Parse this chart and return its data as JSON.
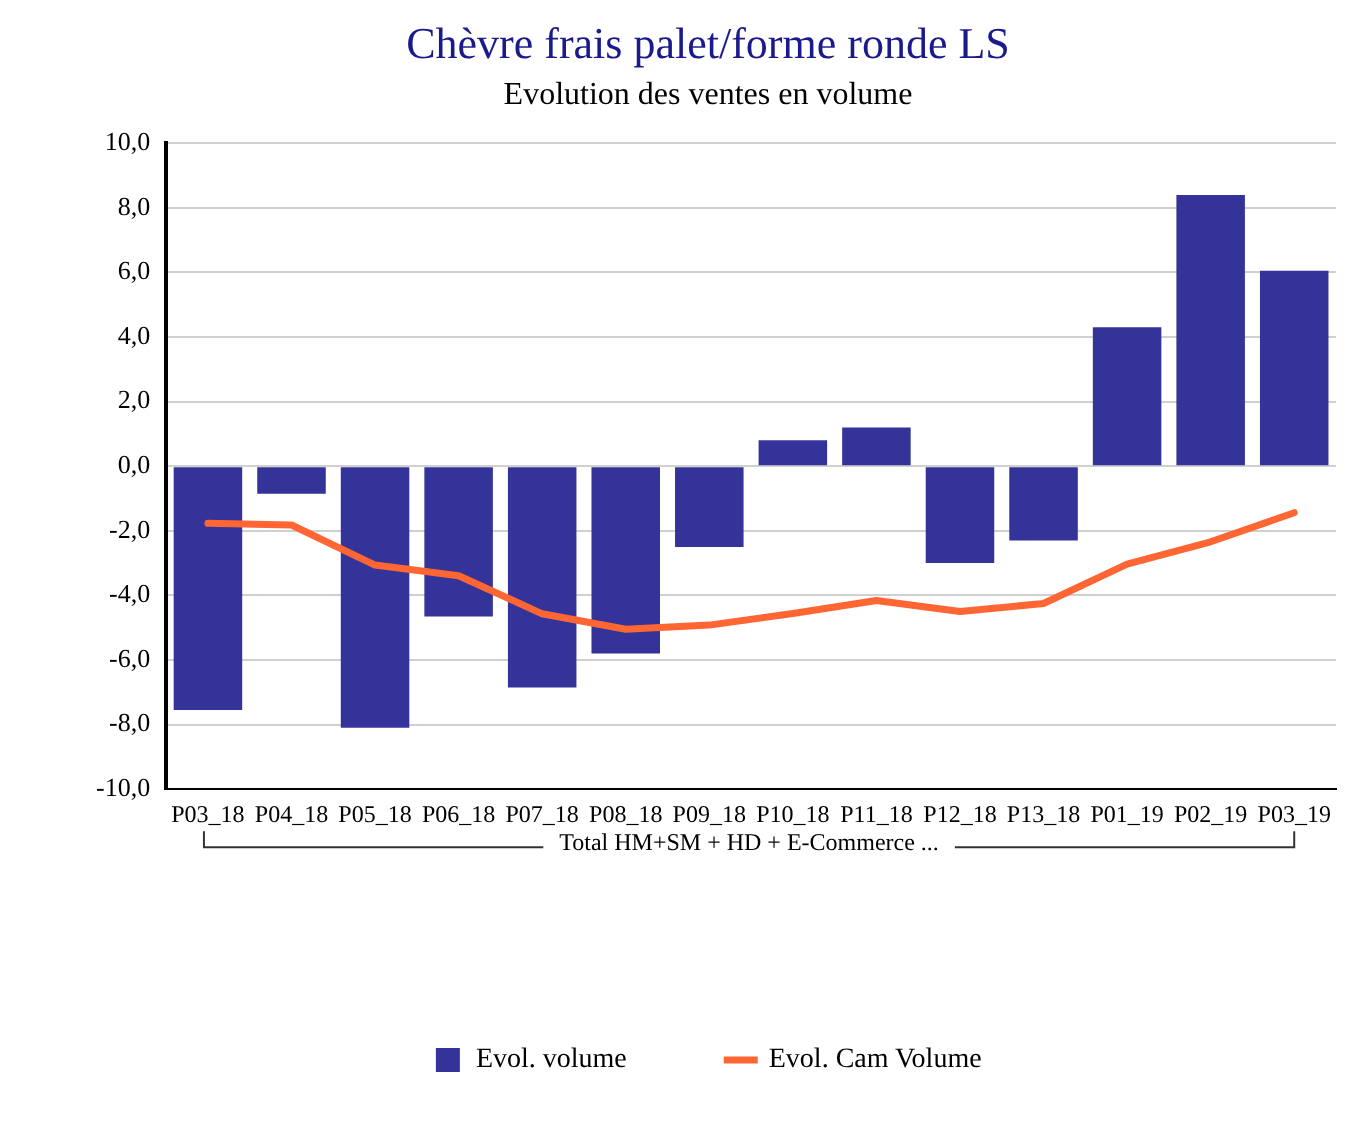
{
  "chart_data": {
    "type": "bar",
    "title": "Chèvre frais palet/forme ronde LS",
    "subtitle": "Evolution des ventes en volume",
    "categories": [
      "P03_18",
      "P04_18",
      "P05_18",
      "P06_18",
      "P07_18",
      "P08_18",
      "P09_18",
      "P10_18",
      "P11_18",
      "P12_18",
      "P13_18",
      "P01_19",
      "P02_19",
      "P03_19"
    ],
    "series": [
      {
        "name": "Evol. volume",
        "color": "#333399",
        "values": [
          -7.55,
          -0.85,
          -8.1,
          -4.65,
          -6.85,
          -5.8,
          -2.5,
          0.8,
          1.2,
          -3.0,
          -2.3,
          4.3,
          8.4,
          6.05
        ]
      },
      {
        "name": "Evol. Cam Volume",
        "type": "line",
        "color": "#ff6633",
        "values": [
          -1.77,
          -1.82,
          -3.06,
          -3.39,
          -4.57,
          -5.05,
          -4.92,
          -4.56,
          -4.16,
          -4.5,
          -4.25,
          -3.03,
          -2.34,
          -1.44
        ]
      }
    ],
    "ylim": [
      -10,
      10
    ],
    "yticks": [
      {
        "value": -10,
        "label": "-10,0"
      },
      {
        "value": -8,
        "label": "-8,0"
      },
      {
        "value": -6,
        "label": "-6,0"
      },
      {
        "value": -4,
        "label": "-4,0"
      },
      {
        "value": -2,
        "label": "-2,0"
      },
      {
        "value": 0,
        "label": "0,0"
      },
      {
        "value": 2,
        "label": "2,0"
      },
      {
        "value": 4,
        "label": "4,0"
      },
      {
        "value": 6,
        "label": "6,0"
      },
      {
        "value": 8,
        "label": "8,0"
      },
      {
        "value": 10,
        "label": "10,0"
      }
    ],
    "grid": "y",
    "legend": "bottom",
    "marker": "none",
    "line_style": "solid",
    "annotations": [
      "Total HM+SM + HD + E-Commerce ..."
    ]
  }
}
